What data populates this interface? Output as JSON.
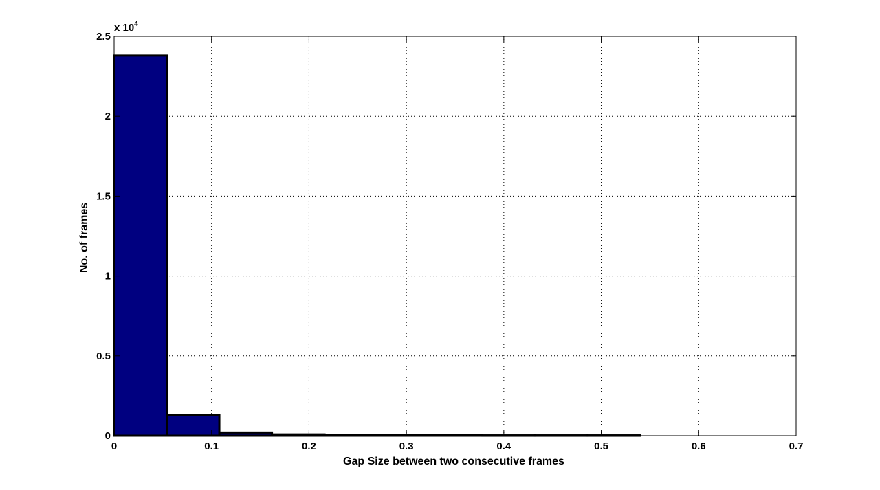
{
  "chart_data": {
    "type": "bar",
    "title": "",
    "xlabel": "Gap Size between two consecutive frames",
    "ylabel": "No. of frames",
    "y_multiplier": {
      "base": "x 10",
      "exponent": "4"
    },
    "xlim": [
      0,
      0.7
    ],
    "ylim": [
      0,
      2.5
    ],
    "x_ticks": [
      0,
      0.1,
      0.2,
      0.3,
      0.4,
      0.5,
      0.6,
      0.7
    ],
    "x_tick_labels": [
      "0",
      "0.1",
      "0.2",
      "0.3",
      "0.4",
      "0.5",
      "0.6",
      "0.7"
    ],
    "y_ticks": [
      0,
      0.5,
      1,
      1.5,
      2,
      2.5
    ],
    "y_tick_labels": [
      "0",
      "0.5",
      "1",
      "1.5",
      "2",
      "2.5"
    ],
    "grid": true,
    "bar_color": "#000080",
    "bin_edges": [
      0,
      0.054,
      0.108,
      0.162,
      0.216,
      0.27,
      0.324,
      0.378,
      0.432,
      0.486,
      0.54
    ],
    "values": [
      2.38,
      0.13,
      0.02,
      0.008,
      0.004,
      0.003,
      0.003,
      0.002,
      0.002,
      0.002
    ]
  }
}
